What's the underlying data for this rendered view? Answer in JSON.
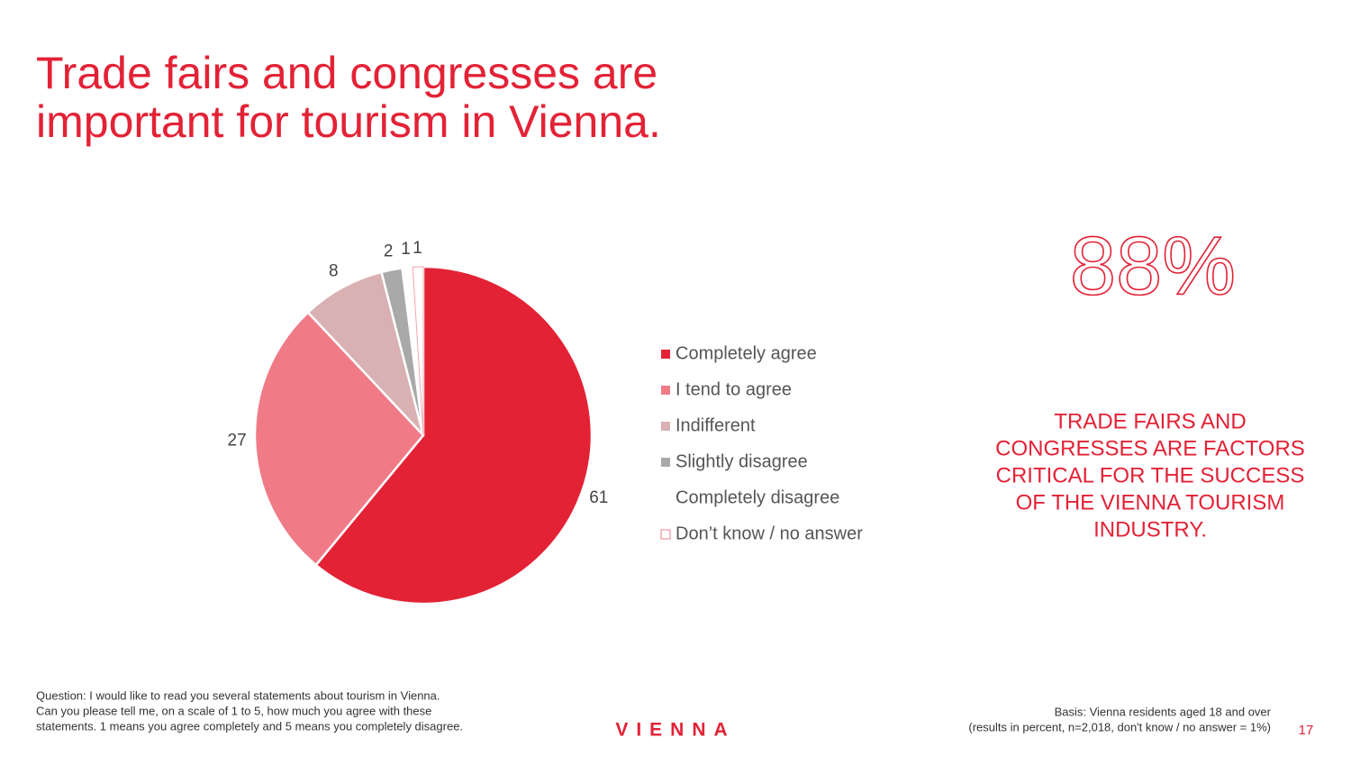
{
  "slide": {
    "title_lines": [
      "Trade fairs and congresses are",
      "important for  tourism in Vienna."
    ],
    "highlight": "88%",
    "statement_lines": [
      "TRADE FAIRS AND",
      "CONGRESSES ARE FACTORS",
      "CRITICAL FOR THE SUCCESS",
      "OF THE VIENNA TOURISM",
      "INDUSTRY."
    ],
    "question_lines": [
      "Question: I would like to read you several statements about tourism in Vienna.",
      "Can you please tell me, on a scale of 1 to 5, how much you agree with these",
      "statements. 1 means you agree completely and 5 means you completely disagree."
    ],
    "logo": "VIENNA",
    "basis_lines": [
      "Basis: Vienna residents aged 18 and over",
      "(results in percent, n=2,018, don't know / no answer = 1%)"
    ],
    "page_number": "17"
  },
  "chart_data": {
    "type": "pie",
    "categories": [
      "Completely agree",
      "I tend to agree",
      "Indifferent",
      "Slightly disagree",
      "Completely disagree",
      "Don’t know / no answer"
    ],
    "values": [
      61,
      27,
      8,
      2,
      1,
      1
    ],
    "colors": [
      "#e32236",
      "#f07b87",
      "#d9b1b3",
      "#a9a9a9",
      "#ffffff",
      "#ffffff"
    ],
    "start_angle": 0,
    "direction": "clockwise"
  }
}
